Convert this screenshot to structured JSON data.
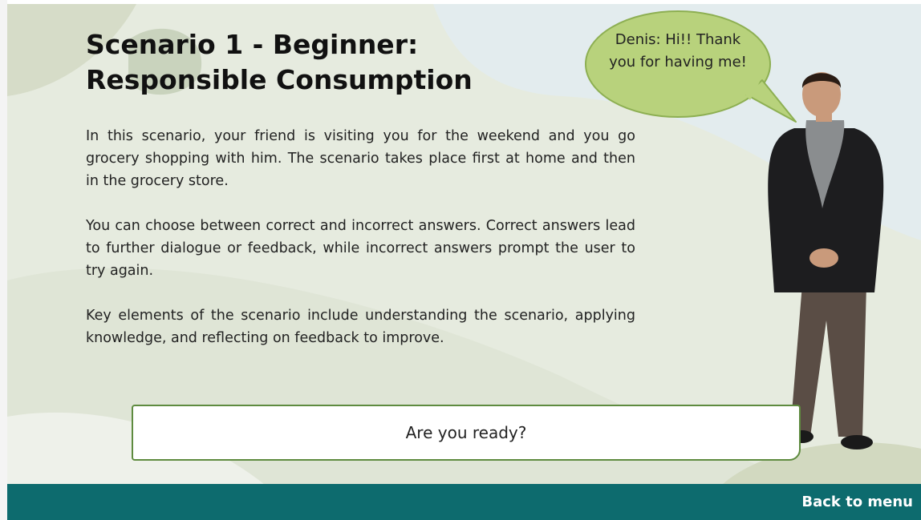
{
  "header": {
    "title_lines": [
      "Scenario 1 - Beginner:",
      "Responsible Consumption"
    ]
  },
  "body": {
    "paragraphs": [
      "In this scenario, your friend is visiting you for the weekend and you go grocery shopping with him. The scenario takes place first at home and then in the grocery store.",
      "You can choose between correct and incorrect answers. Correct answers lead to further dialogue or feedback, while incorrect answers prompt the user to try again.",
      "Key elements of the scenario include understanding the scenario, applying knowledge, and reflecting on feedback to improve."
    ]
  },
  "speech_bubble": {
    "text": "Denis: Hi!! Thank you for having me!"
  },
  "button": {
    "label": "Are you ready?"
  },
  "footer": {
    "link": "Back to menu"
  }
}
